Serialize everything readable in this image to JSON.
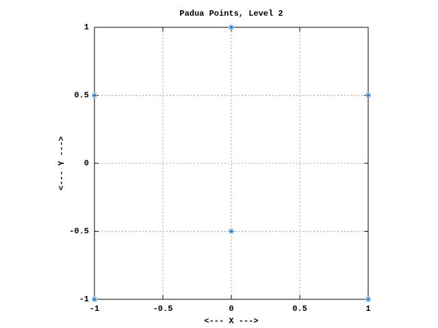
{
  "chart_data": {
    "type": "scatter",
    "title": "Padua Points, Level 2",
    "x_label": "<--- X --->",
    "y_label": "<--- Y --->",
    "series": [
      {
        "color": "#1f77d0",
        "x": [
          -1,
          -1,
          0,
          0,
          1,
          1
        ],
        "values": [
          -1,
          0.5,
          1,
          -0.5,
          0.5,
          -1
        ]
      }
    ],
    "xlim": [
      -1,
      1
    ],
    "ylim": [
      -1,
      1
    ],
    "xticks": [
      -1,
      -0.5,
      0,
      0.5,
      1
    ],
    "yticks": [
      -1,
      -0.5,
      0,
      0.5,
      1
    ],
    "grid": true
  }
}
